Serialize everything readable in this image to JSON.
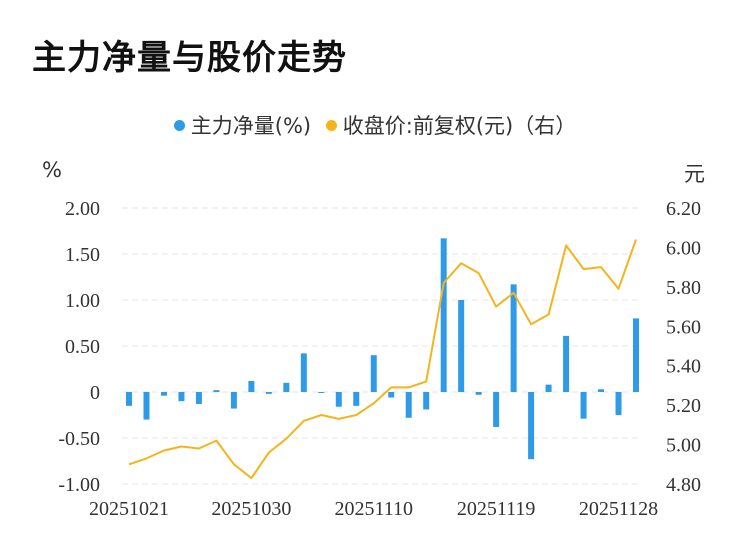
{
  "title": "主力净量与股价走势",
  "legend": {
    "net_label": "主力净量(%)",
    "price_label": "收盘价:前复权(元)（右）"
  },
  "colors": {
    "bar": "#2f9be8",
    "line": "#f5b41c",
    "grid": "#e4e4e4",
    "axis_text": "#333333"
  },
  "chart_data": {
    "type": "bar+line",
    "left_axis": {
      "unit": "%",
      "ylim": [
        -1.0,
        2.0
      ],
      "ticks": [
        2.0,
        1.5,
        1.0,
        0.5,
        0,
        -0.5,
        -1.0
      ],
      "tick_labels": [
        "2.00",
        "1.50",
        "1.00",
        "0.50",
        "0",
        "-0.50",
        "-1.00"
      ]
    },
    "right_axis": {
      "unit": "元",
      "ylim": [
        4.8,
        6.2
      ],
      "ticks": [
        6.2,
        6.0,
        5.8,
        5.6,
        5.4,
        5.2,
        5.0,
        4.8
      ],
      "tick_labels": [
        "6.20",
        "6.00",
        "5.80",
        "5.60",
        "5.40",
        "5.20",
        "5.00",
        "4.80"
      ]
    },
    "x_tick_labels": [
      "20251021",
      "20251030",
      "20251110",
      "20251119",
      "20251128"
    ],
    "x_tick_index": [
      0,
      7,
      14,
      21,
      28
    ],
    "grid": true,
    "series": [
      {
        "name": "主力净量(%)",
        "type": "bar",
        "values": [
          -0.15,
          -0.3,
          -0.04,
          -0.1,
          -0.13,
          0.02,
          -0.18,
          0.12,
          -0.02,
          0.1,
          0.42,
          -0.01,
          -0.16,
          -0.15,
          0.4,
          -0.06,
          -0.28,
          -0.19,
          1.67,
          1.0,
          -0.03,
          -0.38,
          1.17,
          -0.73,
          0.08,
          0.61,
          -0.29,
          0.03,
          -0.25,
          0.8
        ]
      },
      {
        "name": "收盘价:前复权(元)（右）",
        "type": "line",
        "values": [
          4.9,
          4.93,
          4.97,
          4.99,
          4.98,
          5.02,
          4.9,
          4.83,
          4.96,
          5.03,
          5.12,
          5.15,
          5.13,
          5.15,
          5.21,
          5.29,
          5.29,
          5.32,
          5.82,
          5.92,
          5.87,
          5.7,
          5.77,
          5.61,
          5.66,
          6.01,
          5.89,
          5.9,
          5.79,
          6.04
        ]
      }
    ]
  }
}
